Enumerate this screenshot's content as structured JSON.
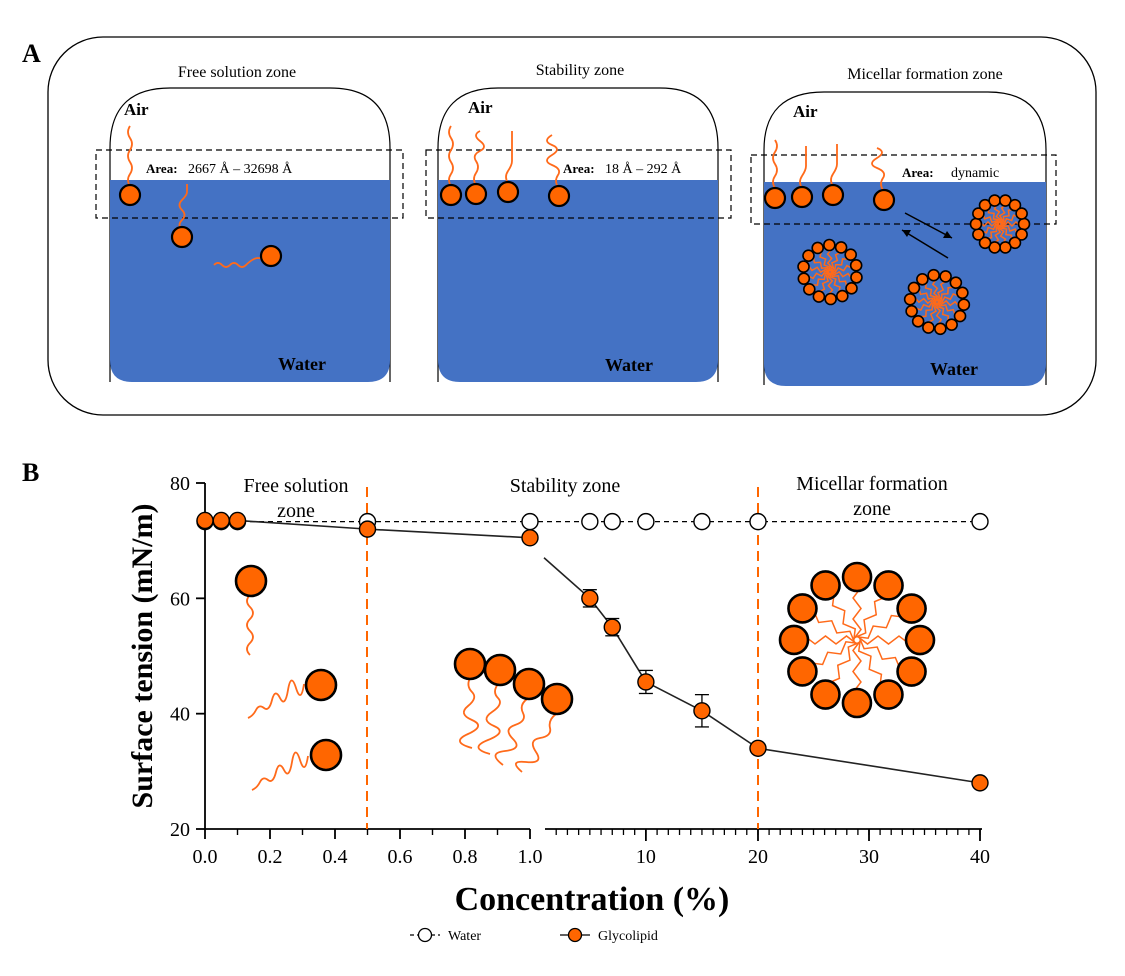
{
  "colors": {
    "water": "#4472c4",
    "glycolipid": "#ff6600",
    "tail": "#ff6a1a",
    "outline": "#000000"
  },
  "panel_a": {
    "label": "A",
    "zones": [
      {
        "title": "Free solution zone",
        "air": "Air",
        "water": "Water",
        "area_label": "Area:",
        "area_value": "2667  Å – 32698  Å"
      },
      {
        "title": "Stability  zone",
        "air": "Air",
        "water": "Water",
        "area_label": "Area:",
        "area_value": "18  Å – 292  Å"
      },
      {
        "title": "Micellar formation zone",
        "air": "Air",
        "water": "Water",
        "area_label": "Area:",
        "area_value": "dynamic"
      }
    ]
  },
  "panel_b": {
    "label": "B",
    "zone_labels": {
      "free": [
        "Free solution",
        "zone"
      ],
      "stability": [
        "Stability zone"
      ],
      "micellar": [
        "Micellar formation",
        "zone"
      ]
    },
    "legend": {
      "water": "Water",
      "glycolipid": "Glycolipid"
    }
  },
  "chart_data": {
    "type": "line",
    "xlabel": "Concentration (%)",
    "ylabel": "Surface tension (mN/m)",
    "ylim": [
      20,
      80
    ],
    "yticks": [
      20,
      40,
      60,
      80
    ],
    "x_axis_segments": [
      {
        "range": [
          0,
          1.0
        ],
        "ticks": [
          "0.0",
          "0.2",
          "0.4",
          "0.6",
          "0.8",
          "1.0"
        ]
      },
      {
        "range": [
          1.0,
          40
        ],
        "ticks": [
          "10",
          "20",
          "30",
          "40"
        ],
        "tick_values": [
          10,
          20,
          30,
          40
        ]
      }
    ],
    "zone_boundaries": [
      0.5,
      20
    ],
    "series": [
      {
        "name": "Water",
        "marker": "open-circle",
        "style": "dashed",
        "x": [
          0,
          0.05,
          0.1,
          0.5,
          1.0,
          5,
          7,
          10,
          15,
          20,
          40
        ],
        "values": [
          73.3,
          73.3,
          73.3,
          73.3,
          73.3,
          73.3,
          73.3,
          73.3,
          73.3,
          73.3,
          73.3
        ]
      },
      {
        "name": "Glycolipid",
        "marker": "filled-circle",
        "style": "solid",
        "x": [
          0,
          0.05,
          0.1,
          0.5,
          1.0,
          5,
          7,
          10,
          15,
          20,
          40
        ],
        "values": [
          73.5,
          73.5,
          73.5,
          72.0,
          70.5,
          60.0,
          55.0,
          45.5,
          40.5,
          34.0,
          28.0
        ],
        "errors": [
          0,
          0,
          0,
          0,
          0,
          1.5,
          1.5,
          2.0,
          2.8,
          0,
          0
        ]
      }
    ]
  }
}
